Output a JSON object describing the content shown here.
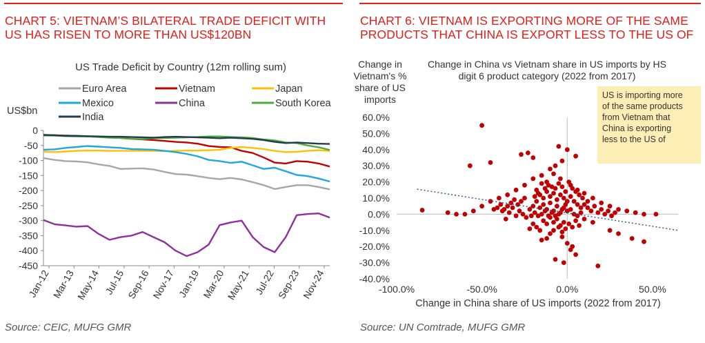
{
  "left": {
    "chart_title_line1": "CHART 5: VIETNAM’S BILATERAL TRADE DEFICIT WITH",
    "chart_title_line2": "US HAS RISEN TO MORE THAN US$120BN",
    "source": "Source: CEIC, MUFG GMR"
  },
  "right": {
    "chart_title_line1": "CHART 6: VIETNAM IS EXPORTING MORE OF THE SAME",
    "chart_title_line2": "PRODUCTS THAT CHINA IS EXPORT LESS TO THE US OF",
    "source": "Source: UN Comtrade, MUFG GMR"
  },
  "colors": {
    "accent_red": "#e0201b",
    "euro": "#a6a6a6",
    "vietnam": "#c00000",
    "japan": "#ffc000",
    "mexico": "#1ea7e1",
    "china": "#8e2f9b",
    "southkorea": "#4eab3a",
    "india": "#1f3d4d",
    "scatter_point": "#c00000",
    "trend": "#2e5b8a",
    "annotation_bg": "#fdeeb5"
  },
  "chart_data": [
    {
      "type": "line",
      "title": "US Trade Deficit by Country (12m rolling sum)",
      "ylabel": "US$bn",
      "xlabel": "",
      "ylim": [
        -450,
        0
      ],
      "yticks": [
        0,
        -50,
        -100,
        -150,
        -200,
        -250,
        -300,
        -350,
        -400,
        -450
      ],
      "ytick_labels": [
        "0",
        "-50",
        "-100",
        "-150",
        "-200",
        "-250",
        "-300",
        "-350",
        "-400",
        "-450"
      ],
      "xtick_labels": [
        "Jan-12",
        "Mar-13",
        "May-14",
        "Jul-15",
        "Sep-16",
        "Nov-17",
        "Jan-19",
        "Mar-20",
        "May-21",
        "Jul-22",
        "Sep-23",
        "Nov-24"
      ],
      "x": [
        "Jan-12",
        "Jul-12",
        "Jan-13",
        "Jul-13",
        "Jan-14",
        "Jul-14",
        "Jan-15",
        "Jul-15",
        "Jan-16",
        "Jul-16",
        "Jan-17",
        "Jul-17",
        "Jan-18",
        "Jul-18",
        "Jan-19",
        "Jul-19",
        "Jan-20",
        "Jul-20",
        "Jan-21",
        "Jul-21",
        "Jan-22",
        "Jul-22",
        "Jan-23",
        "Jul-23",
        "Jan-24",
        "Jul-24",
        "Nov-24"
      ],
      "legend": "top",
      "series": [
        {
          "name": "Euro Area",
          "color_key": "euro",
          "values": [
            -92,
            -98,
            -102,
            -103,
            -106,
            -113,
            -118,
            -128,
            -127,
            -126,
            -130,
            -138,
            -145,
            -147,
            -152,
            -158,
            -162,
            -158,
            -163,
            -172,
            -182,
            -195,
            -188,
            -182,
            -182,
            -188,
            -196
          ]
        },
        {
          "name": "Vietnam",
          "color_key": "vietnam",
          "values": [
            -15,
            -16,
            -17,
            -18,
            -20,
            -21,
            -23,
            -25,
            -28,
            -30,
            -32,
            -35,
            -38,
            -40,
            -44,
            -52,
            -55,
            -56,
            -68,
            -75,
            -90,
            -107,
            -110,
            -102,
            -104,
            -110,
            -120
          ]
        },
        {
          "name": "Japan",
          "color_key": "japan",
          "values": [
            -70,
            -72,
            -70,
            -68,
            -67,
            -67,
            -68,
            -68,
            -68,
            -68,
            -68,
            -69,
            -68,
            -67,
            -67,
            -66,
            -64,
            -58,
            -55,
            -58,
            -62,
            -68,
            -72,
            -71,
            -68,
            -66,
            -68
          ]
        },
        {
          "name": "Mexico",
          "color_key": "mexico",
          "values": [
            -64,
            -63,
            -58,
            -55,
            -52,
            -54,
            -56,
            -58,
            -62,
            -63,
            -64,
            -68,
            -72,
            -78,
            -86,
            -98,
            -102,
            -108,
            -104,
            -116,
            -128,
            -124,
            -136,
            -148,
            -152,
            -160,
            -170
          ]
        },
        {
          "name": "China",
          "color_key": "china",
          "values": [
            -298,
            -312,
            -316,
            -320,
            -318,
            -344,
            -364,
            -355,
            -350,
            -338,
            -355,
            -372,
            -400,
            -418,
            -405,
            -380,
            -315,
            -306,
            -300,
            -355,
            -388,
            -405,
            -355,
            -282,
            -278,
            -276,
            -290
          ]
        },
        {
          "name": "South Korea",
          "color_key": "southkorea",
          "values": [
            -17,
            -17,
            -19,
            -20,
            -20,
            -22,
            -24,
            -25,
            -28,
            -29,
            -26,
            -25,
            -24,
            -23,
            -22,
            -20,
            -20,
            -22,
            -23,
            -25,
            -30,
            -33,
            -40,
            -42,
            -50,
            -56,
            -65
          ]
        },
        {
          "name": "India",
          "color_key": "india",
          "values": [
            -15,
            -16,
            -18,
            -18,
            -19,
            -20,
            -21,
            -21,
            -22,
            -23,
            -24,
            -22,
            -21,
            -22,
            -23,
            -24,
            -26,
            -24,
            -26,
            -28,
            -32,
            -38,
            -42,
            -40,
            -42,
            -44,
            -45
          ]
        }
      ]
    },
    {
      "type": "scatter",
      "title": "Change in China vs Vietnam share in US imports by HS digit 6 product category (2022 from 2017)",
      "xlabel": "Change in China share of US imports (2022 from 2017)",
      "ylabel": "Change in Vietnam's % share of US imports",
      "xlim": [
        -100,
        65
      ],
      "ylim": [
        -40,
        60
      ],
      "xticks": [
        -100,
        -50,
        0,
        50
      ],
      "xtick_labels": [
        "-100.0%",
        "-50.0%",
        "0.0%",
        "50.0%"
      ],
      "yticks": [
        60,
        50,
        40,
        30,
        20,
        10,
        0,
        -10,
        -20,
        -30,
        -40
      ],
      "ytick_labels": [
        "60.0%",
        "50.0%",
        "40.0%",
        "30.0%",
        "20.0%",
        "10.0%",
        "0.0%",
        "-10.0%",
        "-20.0%",
        "-30.0%",
        "-40.0%"
      ],
      "annotation": "US is importing more of the same products from Vietnam that China is exporting less to the US of",
      "trendline": {
        "x1": -88,
        "y1": 15.5,
        "x2": 65,
        "y2": -10
      },
      "points": [
        [
          -50,
          55
        ],
        [
          -85,
          2.5
        ],
        [
          -57,
          30
        ],
        [
          -45,
          32
        ],
        [
          -27,
          37
        ],
        [
          -23,
          38
        ],
        [
          -20,
          35
        ],
        [
          -5,
          42
        ],
        [
          0,
          40
        ],
        [
          5,
          36
        ],
        [
          -3,
          33
        ],
        [
          -7,
          30
        ],
        [
          -10,
          28
        ],
        [
          -15,
          24
        ],
        [
          -20,
          22
        ],
        [
          -25,
          18
        ],
        [
          -30,
          15
        ],
        [
          -35,
          12
        ],
        [
          -40,
          10
        ],
        [
          -45,
          8
        ],
        [
          -50,
          5
        ],
        [
          -55,
          2
        ],
        [
          -60,
          0
        ],
        [
          -65,
          0
        ],
        [
          -70,
          1
        ],
        [
          -18,
          15
        ],
        [
          -12,
          20
        ],
        [
          -8,
          25
        ],
        [
          -4,
          22
        ],
        [
          2,
          18
        ],
        [
          6,
          15
        ],
        [
          10,
          13
        ],
        [
          15,
          10
        ],
        [
          20,
          7
        ],
        [
          25,
          5
        ],
        [
          30,
          3
        ],
        [
          35,
          2
        ],
        [
          40,
          1
        ],
        [
          45,
          0
        ],
        [
          52,
          0
        ],
        [
          -2,
          -5
        ],
        [
          -5,
          -8
        ],
        [
          -8,
          -10
        ],
        [
          -10,
          -12
        ],
        [
          -12,
          -15
        ],
        [
          -15,
          -16
        ],
        [
          -3,
          -14
        ],
        [
          0,
          -18
        ],
        [
          3,
          -20
        ],
        [
          2,
          -22
        ],
        [
          5,
          -25
        ],
        [
          -7,
          -28
        ],
        [
          -2,
          -30
        ],
        [
          18,
          -32
        ],
        [
          45,
          -17
        ],
        [
          38,
          -15
        ],
        [
          30,
          -12
        ],
        [
          25,
          -10
        ],
        [
          15,
          -5
        ],
        [
          10,
          -3
        ],
        [
          -20,
          5
        ],
        [
          -18,
          8
        ],
        [
          -16,
          4
        ],
        [
          -14,
          6
        ],
        [
          -12,
          3
        ],
        [
          -10,
          7
        ],
        [
          -8,
          2
        ],
        [
          -6,
          5
        ],
        [
          -4,
          1
        ],
        [
          -2,
          4
        ],
        [
          0,
          2
        ],
        [
          2,
          3
        ],
        [
          4,
          0
        ],
        [
          6,
          -1
        ],
        [
          8,
          1
        ],
        [
          -22,
          3
        ],
        [
          -24,
          -2
        ],
        [
          -26,
          0
        ],
        [
          -28,
          2
        ],
        [
          -30,
          -1
        ],
        [
          -32,
          4
        ],
        [
          -34,
          1
        ],
        [
          -36,
          -3
        ],
        [
          -38,
          2
        ],
        [
          -14,
          -4
        ],
        [
          -12,
          -6
        ],
        [
          -10,
          -2
        ],
        [
          -8,
          -5
        ],
        [
          -6,
          -3
        ],
        [
          -4,
          -7
        ],
        [
          -16,
          12
        ],
        [
          -14,
          10
        ],
        [
          -12,
          14
        ],
        [
          -10,
          11
        ],
        [
          -8,
          13
        ],
        [
          -6,
          9
        ],
        [
          -4,
          12
        ],
        [
          -2,
          10
        ],
        [
          0,
          8
        ],
        [
          2,
          11
        ],
        [
          -18,
          -8
        ],
        [
          -16,
          -10
        ],
        [
          -20,
          -6
        ],
        [
          -22,
          -9
        ],
        [
          -3,
          -11
        ],
        [
          -1,
          -9
        ],
        [
          1,
          -6
        ],
        [
          3,
          -8
        ],
        [
          5,
          -4
        ],
        [
          7,
          -7
        ],
        [
          -25,
          10
        ],
        [
          -27,
          8
        ],
        [
          -29,
          6
        ],
        [
          -31,
          9
        ],
        [
          -33,
          7
        ],
        [
          -35,
          5
        ],
        [
          -37,
          3
        ],
        [
          -39,
          6
        ],
        [
          -41,
          4
        ],
        [
          -43,
          3
        ],
        [
          12,
          4
        ],
        [
          14,
          2
        ],
        [
          16,
          5
        ],
        [
          18,
          1
        ],
        [
          20,
          3
        ],
        [
          22,
          0
        ],
        [
          24,
          2
        ],
        [
          26,
          -1
        ],
        [
          28,
          1
        ],
        [
          -1,
          6
        ],
        [
          -3,
          3
        ],
        [
          -5,
          0
        ],
        [
          -7,
          -1
        ],
        [
          -9,
          1
        ],
        [
          -11,
          -1
        ],
        [
          -13,
          2
        ],
        [
          -15,
          0
        ],
        [
          -17,
          -1
        ],
        [
          -19,
          1
        ],
        [
          -21,
          -1
        ],
        [
          -9,
          17
        ],
        [
          -11,
          18
        ],
        [
          -13,
          16
        ],
        [
          -15,
          19
        ],
        [
          -17,
          13
        ],
        [
          -19,
          11
        ],
        [
          -7,
          16
        ],
        [
          -5,
          19
        ],
        [
          -3,
          17
        ],
        [
          -1,
          14
        ],
        [
          4,
          8
        ],
        [
          6,
          6
        ],
        [
          8,
          4
        ],
        [
          10,
          6
        ],
        [
          12,
          8
        ],
        [
          9,
          10
        ],
        [
          7,
          12
        ],
        [
          5,
          14
        ],
        [
          3,
          16
        ],
        [
          1,
          20
        ]
      ]
    }
  ]
}
